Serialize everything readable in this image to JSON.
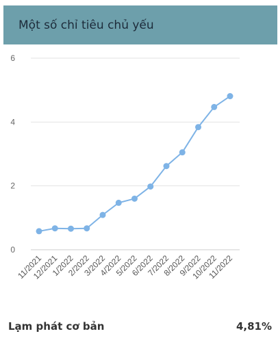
{
  "header": {
    "title": "Một số chỉ tiêu chủ yếu"
  },
  "chart_data": {
    "type": "line",
    "title": "",
    "xlabel": "",
    "ylabel": "",
    "categories": [
      "11/2021",
      "12/2021",
      "1/2022",
      "2/2022",
      "3/2022",
      "4/2022",
      "5/2022",
      "6/2022",
      "7/2022",
      "8/2022",
      "9/2022",
      "10/2022",
      "11/2022"
    ],
    "series": [
      {
        "values": [
          0.58,
          0.67,
          0.66,
          0.67,
          1.09,
          1.47,
          1.6,
          1.98,
          2.62,
          3.05,
          3.84,
          4.47,
          4.81
        ]
      }
    ],
    "ylim": [
      0,
      6
    ],
    "yticks": [
      0,
      2,
      4,
      6
    ],
    "grid": true,
    "color": "#7eb3e6"
  },
  "footer": {
    "label": "Lạm phát cơ bản",
    "value": "4,81%"
  }
}
